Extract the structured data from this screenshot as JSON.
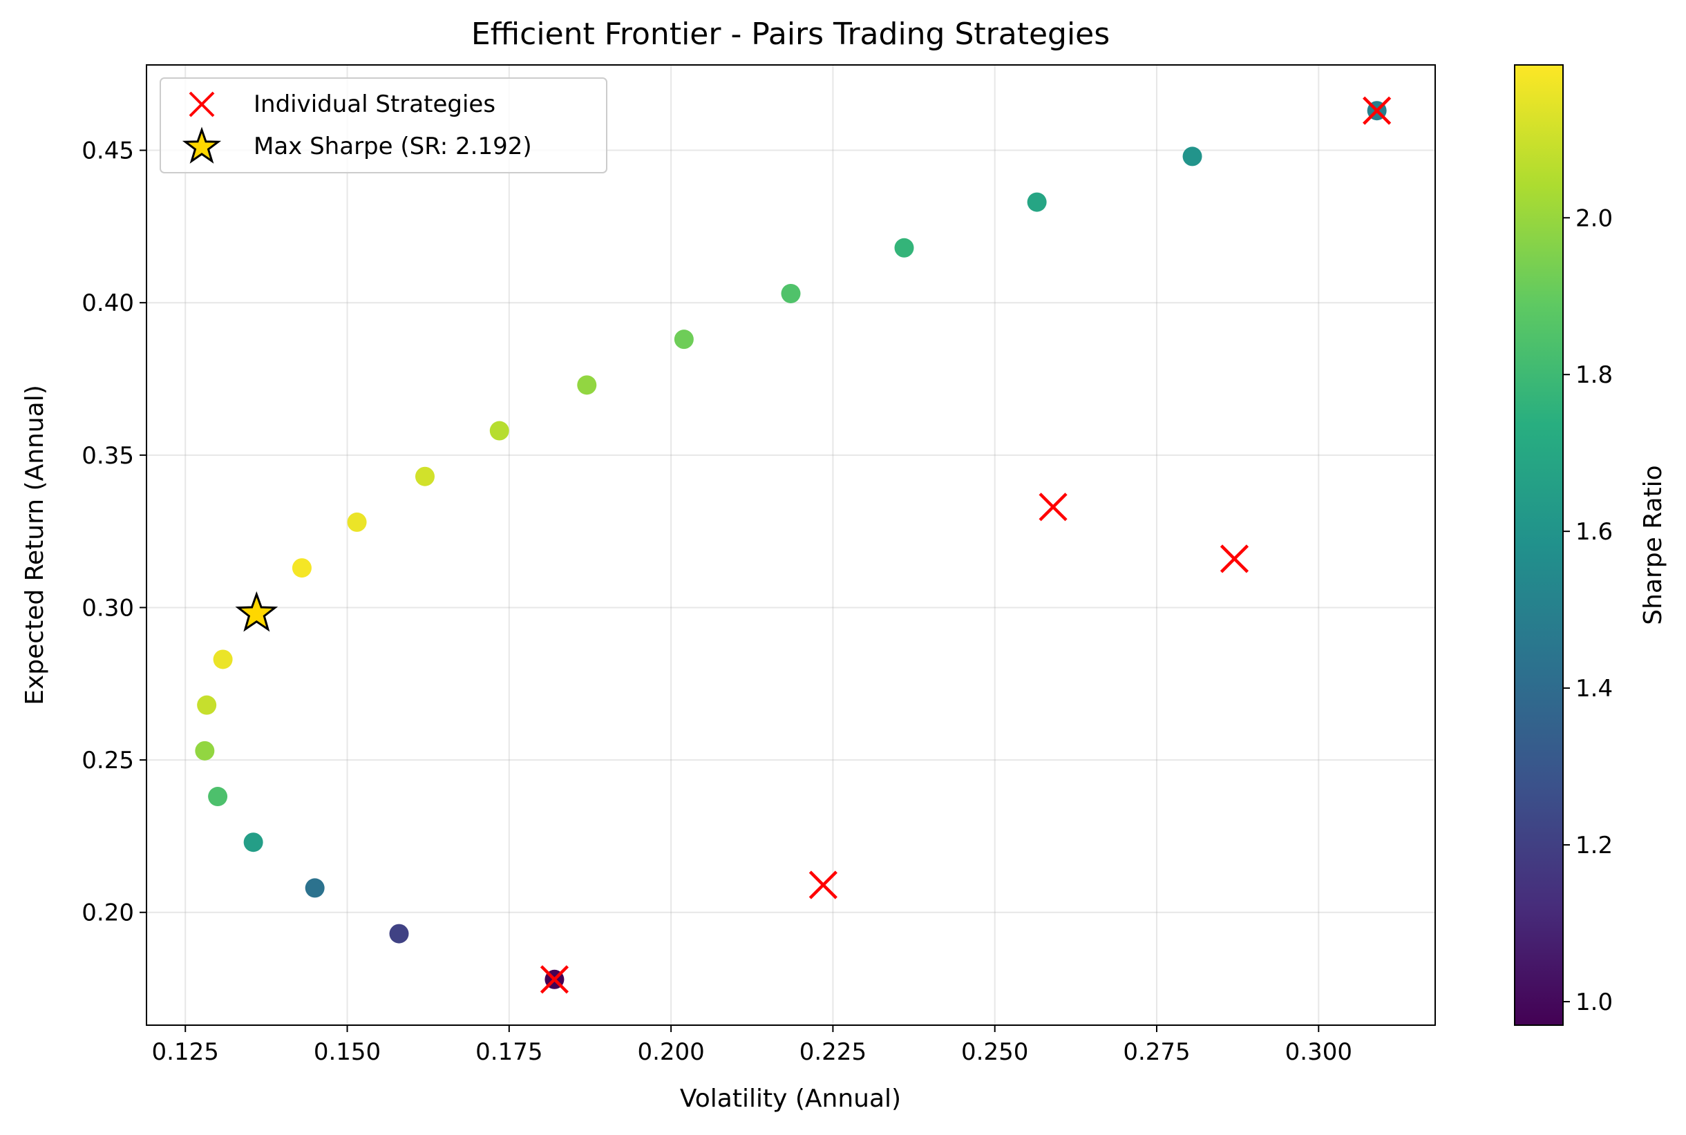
{
  "chart_data": {
    "type": "scatter",
    "title": "Efficient Frontier - Pairs Trading Strategies",
    "xlabel": "Volatility (Annual)",
    "ylabel": "Expected Return (Annual)",
    "colorbar_label": "Sharpe Ratio",
    "xlim": [
      0.119,
      0.318
    ],
    "ylim": [
      0.163,
      0.478
    ],
    "xticks": [
      0.125,
      0.15,
      0.175,
      0.2,
      0.225,
      0.25,
      0.275,
      0.3
    ],
    "xtick_labels": [
      "0.125",
      "0.150",
      "0.175",
      "0.200",
      "0.225",
      "0.250",
      "0.275",
      "0.300"
    ],
    "yticks": [
      0.2,
      0.25,
      0.3,
      0.35,
      0.4,
      0.45
    ],
    "ytick_labels": [
      "0.20",
      "0.25",
      "0.30",
      "0.35",
      "0.40",
      "0.45"
    ],
    "clim": [
      0.97,
      2.195
    ],
    "cticks": [
      1.0,
      1.2,
      1.4,
      1.6,
      1.8,
      2.0
    ],
    "ctick_labels": [
      "1.0",
      "1.2",
      "1.4",
      "1.6",
      "1.8",
      "2.0"
    ],
    "colormap": "viridis",
    "grid": true,
    "legend_position": "upper-left",
    "series": [
      {
        "kind": "frontier",
        "points": [
          {
            "x": 0.182,
            "y": 0.178,
            "sharpe": 0.975
          },
          {
            "x": 0.158,
            "y": 0.193,
            "sharpe": 1.21
          },
          {
            "x": 0.145,
            "y": 0.208,
            "sharpe": 1.43
          },
          {
            "x": 0.1355,
            "y": 0.223,
            "sharpe": 1.65
          },
          {
            "x": 0.13,
            "y": 0.238,
            "sharpe": 1.84
          },
          {
            "x": 0.128,
            "y": 0.253,
            "sharpe": 1.99
          },
          {
            "x": 0.1283,
            "y": 0.268,
            "sharpe": 2.09
          },
          {
            "x": 0.1308,
            "y": 0.283,
            "sharpe": 2.16
          },
          {
            "x": 0.143,
            "y": 0.313,
            "sharpe": 2.18
          },
          {
            "x": 0.1515,
            "y": 0.328,
            "sharpe": 2.16
          },
          {
            "x": 0.162,
            "y": 0.343,
            "sharpe": 2.11
          },
          {
            "x": 0.1735,
            "y": 0.358,
            "sharpe": 2.06
          },
          {
            "x": 0.187,
            "y": 0.373,
            "sharpe": 1.99
          },
          {
            "x": 0.202,
            "y": 0.388,
            "sharpe": 1.92
          },
          {
            "x": 0.2185,
            "y": 0.403,
            "sharpe": 1.85
          },
          {
            "x": 0.236,
            "y": 0.418,
            "sharpe": 1.77
          },
          {
            "x": 0.2565,
            "y": 0.433,
            "sharpe": 1.69
          },
          {
            "x": 0.2805,
            "y": 0.448,
            "sharpe": 1.6
          },
          {
            "x": 0.309,
            "y": 0.463,
            "sharpe": 1.5
          }
        ]
      },
      {
        "kind": "individual",
        "name": "Individual Strategies",
        "color": "#ff0000",
        "marker": "x",
        "points": [
          {
            "x": 0.182,
            "y": 0.178
          },
          {
            "x": 0.2235,
            "y": 0.209
          },
          {
            "x": 0.259,
            "y": 0.333
          },
          {
            "x": 0.287,
            "y": 0.316
          },
          {
            "x": 0.309,
            "y": 0.463
          }
        ]
      },
      {
        "kind": "max_sharpe",
        "name": "Max Sharpe (SR: 2.192)",
        "color": "#ffd700",
        "marker": "star",
        "points": [
          {
            "x": 0.136,
            "y": 0.298,
            "sharpe": 2.192
          }
        ]
      }
    ]
  }
}
